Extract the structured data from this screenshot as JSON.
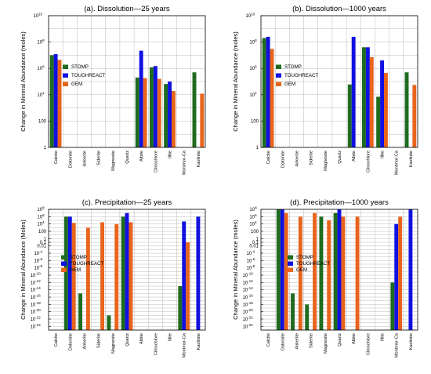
{
  "colors": {
    "STOMP": "#1f6b1f",
    "TOUGHREACT": "#1010e0",
    "GEM": "#e8641c"
  },
  "chart_data": [
    {
      "type": "bar",
      "scale": "log",
      "grid": true,
      "legend": "middle-center",
      "title": "(a). Dissolution—25 years",
      "ylabel": "Change in Mineral Abundance (moles)",
      "ylim_exp": [
        0,
        10
      ],
      "y_ticks": [
        {
          "exp": 0,
          "label": "1"
        },
        {
          "exp": 2,
          "label": "100"
        },
        {
          "exp": 4,
          "label": "10",
          "sup": "4"
        },
        {
          "exp": 6,
          "label": "10",
          "sup": "6"
        },
        {
          "exp": 8,
          "label": "10",
          "sup": "8"
        },
        {
          "exp": 10,
          "label": "10",
          "sup": "10"
        }
      ],
      "categories": [
        "Calcite",
        "Dolomite",
        "Ankerite",
        "Siderite",
        "Magnesite",
        "Quartz",
        "Albite",
        "Clinochlore",
        "Illite",
        "Montmor-Ca",
        "Kaolinite"
      ],
      "series": [
        {
          "name": "STOMP",
          "values": [
            10000000.0,
            null,
            null,
            null,
            null,
            null,
            200000.0,
            1200000.0,
            65000.0,
            null,
            500000.0
          ]
        },
        {
          "name": "TOUGHREACT",
          "values": [
            12000000.0,
            null,
            null,
            null,
            null,
            null,
            22000000.0,
            1500000.0,
            100000.0,
            null,
            null
          ]
        },
        {
          "name": "GEM",
          "values": [
            4500000.0,
            null,
            null,
            null,
            null,
            null,
            180000.0,
            160000.0,
            19000.0,
            null,
            12000.0
          ]
        }
      ]
    },
    {
      "type": "bar",
      "scale": "log",
      "grid": true,
      "legend": "middle-center",
      "title": "(b). Dissolution—1000 years",
      "ylabel": "Change in Mineral Abundance (moles)",
      "ylim_exp": [
        0,
        10
      ],
      "y_ticks": [
        {
          "exp": 0,
          "label": "1"
        },
        {
          "exp": 2,
          "label": "100"
        },
        {
          "exp": 4,
          "label": "10",
          "sup": "4"
        },
        {
          "exp": 6,
          "label": "10",
          "sup": "6"
        },
        {
          "exp": 8,
          "label": "10",
          "sup": "8"
        },
        {
          "exp": 10,
          "label": "10",
          "sup": "10"
        }
      ],
      "categories": [
        "Calcite",
        "Dolomite",
        "Ankerite",
        "Siderite",
        "Magnesite",
        "Quartz",
        "Albite",
        "Clinochlore",
        "Illite",
        "Montmor-Ca",
        "Kaolinite"
      ],
      "series": [
        {
          "name": "STOMP",
          "values": [
            200000000.0,
            null,
            null,
            null,
            null,
            null,
            60000.0,
            40000000.0,
            7000.0,
            null,
            500000.0
          ]
        },
        {
          "name": "TOUGHREACT",
          "values": [
            250000000.0,
            null,
            null,
            null,
            null,
            null,
            250000000.0,
            40000000.0,
            4000000.0,
            null,
            null
          ]
        },
        {
          "name": "GEM",
          "values": [
            30000000.0,
            null,
            null,
            null,
            null,
            null,
            null,
            7000000.0,
            450000.0,
            null,
            55000.0
          ]
        }
      ]
    },
    {
      "type": "bar",
      "scale": "log",
      "grid": true,
      "legend": "bottom-left",
      "title": "(c). Precipitation—25 years",
      "ylabel": "Change in Mineral Abundance (Moles)",
      "ylim_exp": [
        -25,
        8
      ],
      "y_ticks": [
        {
          "exp": 8,
          "label": "10",
          "sup": "8"
        },
        {
          "exp": 6,
          "label": "10",
          "sup": "6"
        },
        {
          "exp": 4,
          "label": "10",
          "sup": "4"
        },
        {
          "exp": 2,
          "label": "100"
        },
        {
          "exp": 0,
          "label": "1"
        },
        {
          "exp": -1,
          "label": "0.1"
        },
        {
          "exp": -2,
          "label": "0.01"
        },
        {
          "exp": -4,
          "label": "10",
          "sup": "-4"
        },
        {
          "exp": -6,
          "label": "10",
          "sup": "-6"
        },
        {
          "exp": -8,
          "label": "10",
          "sup": "-8"
        },
        {
          "exp": -10,
          "label": "10",
          "sup": "-10"
        },
        {
          "exp": -12,
          "label": "10",
          "sup": "-12"
        },
        {
          "exp": -14,
          "label": "10",
          "sup": "-14"
        },
        {
          "exp": -16,
          "label": "10",
          "sup": "-16"
        },
        {
          "exp": -18,
          "label": "10",
          "sup": "-18"
        },
        {
          "exp": -20,
          "label": "10",
          "sup": "-20"
        },
        {
          "exp": -22,
          "label": "10",
          "sup": "-22"
        },
        {
          "exp": -24,
          "label": "10",
          "sup": "-24"
        }
      ],
      "categories": [
        "Calcite",
        "Dolomite",
        "Ankerite",
        "Siderite",
        "Magnesite",
        "Quartz",
        "Albite",
        "Clinochlore",
        "Illite",
        "Montmor-Ca",
        "Kaolinite"
      ],
      "series": [
        {
          "name": "STOMP",
          "values": [
            null,
            1000000.0,
            1e-15,
            null,
            1e-21,
            1000000.0,
            null,
            null,
            null,
            1e-13,
            null
          ]
        },
        {
          "name": "TOUGHREACT",
          "values": [
            null,
            1000000.0,
            null,
            null,
            null,
            10000000.0,
            null,
            null,
            null,
            50000.0,
            1000000.0
          ]
        },
        {
          "name": "GEM",
          "values": [
            null,
            20000.0,
            1000.0,
            30000.0,
            10000.0,
            30000.0,
            null,
            null,
            null,
            0.1,
            null
          ]
        }
      ]
    },
    {
      "type": "bar",
      "scale": "log",
      "grid": true,
      "legend": "bottom-center",
      "title": "(d). Precipitation—1000 years",
      "ylabel": "Change in Mineral Abundance (moles)",
      "ylim_exp": [
        -25,
        8
      ],
      "y_ticks": [
        {
          "exp": 8,
          "label": "10",
          "sup": "8"
        },
        {
          "exp": 6,
          "label": "10",
          "sup": "6"
        },
        {
          "exp": 4,
          "label": "10",
          "sup": "4"
        },
        {
          "exp": 2,
          "label": "100"
        },
        {
          "exp": 0,
          "label": "1"
        },
        {
          "exp": -1,
          "label": "0.1"
        },
        {
          "exp": -2,
          "label": "0.01"
        },
        {
          "exp": -4,
          "label": "10",
          "sup": "-4"
        },
        {
          "exp": -6,
          "label": "10",
          "sup": "-6"
        },
        {
          "exp": -8,
          "label": "10",
          "sup": "-8"
        },
        {
          "exp": -10,
          "label": "10",
          "sup": "-10"
        },
        {
          "exp": -12,
          "label": "10",
          "sup": "-12"
        },
        {
          "exp": -14,
          "label": "10",
          "sup": "-14"
        },
        {
          "exp": -16,
          "label": "10",
          "sup": "-16"
        },
        {
          "exp": -18,
          "label": "10",
          "sup": "-18"
        },
        {
          "exp": -20,
          "label": "10",
          "sup": "-20"
        },
        {
          "exp": -22,
          "label": "10",
          "sup": "-22"
        },
        {
          "exp": -24,
          "label": "10",
          "sup": "-24"
        }
      ],
      "categories": [
        "Calcite",
        "Dolomite",
        "Ankerite",
        "Siderite",
        "Magnesite",
        "Quartz",
        "Albite",
        "Clinochlore",
        "Illite",
        "Montmor-Ca",
        "Kaolinite"
      ],
      "series": [
        {
          "name": "STOMP",
          "values": [
            null,
            100000000.0,
            1e-15,
            1e-18,
            1000000.0,
            10000000.0,
            null,
            null,
            null,
            1e-12,
            null
          ]
        },
        {
          "name": "TOUGHREACT",
          "values": [
            null,
            100000000.0,
            null,
            null,
            null,
            100000000.0,
            null,
            null,
            null,
            10000.0,
            100000000.0
          ]
        },
        {
          "name": "GEM",
          "values": [
            null,
            10000000.0,
            1000000.0,
            10000000.0,
            100000.0,
            1000000.0,
            1000000.0,
            null,
            null,
            1000000.0,
            null
          ]
        }
      ]
    }
  ]
}
